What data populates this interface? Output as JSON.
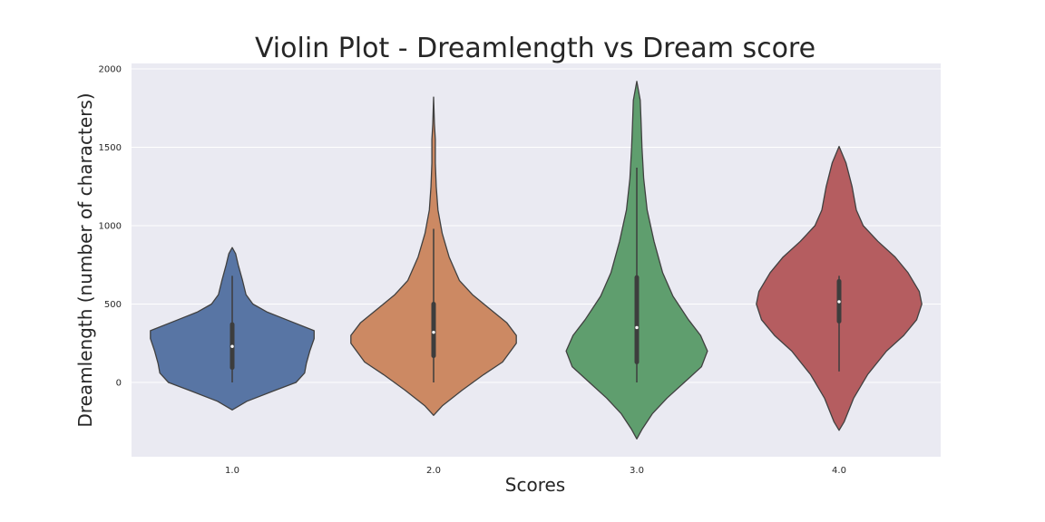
{
  "chart_data": {
    "type": "violin",
    "title": "Violin Plot - Dreamlength vs Dream score",
    "xlabel": "Scores",
    "ylabel": "Dreamlength (number of characters)",
    "categories": [
      "1.0",
      "2.0",
      "3.0",
      "4.0"
    ],
    "yticks": [
      0,
      500,
      1000,
      1500,
      2000
    ],
    "ytick_labels": [
      "0",
      "500",
      "1000",
      "1500",
      "2000"
    ],
    "ylim": [
      -470,
      2030
    ],
    "grid": true,
    "colors": [
      "#5875a4",
      "#cc8963",
      "#5f9e6e",
      "#b55d60"
    ],
    "background": "#eaeaf2",
    "violins": [
      {
        "category": "1.0",
        "min": -175,
        "max": 860,
        "whisker_low": 0,
        "q1": 95,
        "median": 230,
        "q3": 370,
        "whisker_high": 680,
        "profile": [
          [
            -175,
            0
          ],
          [
            -120,
            0.17
          ],
          [
            -50,
            0.5
          ],
          [
            0,
            0.74
          ],
          [
            60,
            0.84
          ],
          [
            120,
            0.86
          ],
          [
            200,
            0.9
          ],
          [
            280,
            0.95
          ],
          [
            330,
            0.95
          ],
          [
            400,
            0.63
          ],
          [
            450,
            0.4
          ],
          [
            500,
            0.24
          ],
          [
            560,
            0.16
          ],
          [
            650,
            0.12
          ],
          [
            750,
            0.07
          ],
          [
            820,
            0.04
          ],
          [
            860,
            0
          ]
        ]
      },
      {
        "category": "2.0",
        "min": -210,
        "max": 1820,
        "whisker_low": 0,
        "q1": 170,
        "median": 320,
        "q3": 500,
        "whisker_high": 980,
        "profile": [
          [
            -210,
            0
          ],
          [
            -150,
            0.1
          ],
          [
            -50,
            0.33
          ],
          [
            50,
            0.58
          ],
          [
            130,
            0.8
          ],
          [
            250,
            0.96
          ],
          [
            300,
            0.96
          ],
          [
            380,
            0.85
          ],
          [
            470,
            0.65
          ],
          [
            560,
            0.45
          ],
          [
            650,
            0.3
          ],
          [
            800,
            0.18
          ],
          [
            950,
            0.1
          ],
          [
            1100,
            0.05
          ],
          [
            1250,
            0.03
          ],
          [
            1400,
            0.02
          ],
          [
            1550,
            0.02
          ],
          [
            1650,
            0.01
          ],
          [
            1820,
            0
          ]
        ]
      },
      {
        "category": "3.0",
        "min": -360,
        "max": 1920,
        "whisker_low": 0,
        "q1": 130,
        "median": 350,
        "q3": 670,
        "whisker_high": 1370,
        "profile": [
          [
            -360,
            0
          ],
          [
            -300,
            0.06
          ],
          [
            -200,
            0.18
          ],
          [
            -100,
            0.35
          ],
          [
            0,
            0.55
          ],
          [
            100,
            0.75
          ],
          [
            200,
            0.82
          ],
          [
            300,
            0.74
          ],
          [
            400,
            0.6
          ],
          [
            550,
            0.42
          ],
          [
            700,
            0.3
          ],
          [
            900,
            0.2
          ],
          [
            1100,
            0.12
          ],
          [
            1300,
            0.08
          ],
          [
            1500,
            0.06
          ],
          [
            1650,
            0.05
          ],
          [
            1800,
            0.04
          ],
          [
            1920,
            0
          ]
        ]
      },
      {
        "category": "4.0",
        "min": -305,
        "max": 1505,
        "whisker_low": 70,
        "q1": 390,
        "median": 515,
        "q3": 645,
        "whisker_high": 680,
        "profile": [
          [
            -305,
            0
          ],
          [
            -250,
            0.06
          ],
          [
            -100,
            0.17
          ],
          [
            50,
            0.33
          ],
          [
            200,
            0.55
          ],
          [
            300,
            0.75
          ],
          [
            400,
            0.9
          ],
          [
            500,
            0.96
          ],
          [
            580,
            0.93
          ],
          [
            700,
            0.8
          ],
          [
            800,
            0.65
          ],
          [
            900,
            0.45
          ],
          [
            1000,
            0.28
          ],
          [
            1100,
            0.2
          ],
          [
            1250,
            0.15
          ],
          [
            1400,
            0.08
          ],
          [
            1505,
            0
          ]
        ]
      }
    ]
  }
}
